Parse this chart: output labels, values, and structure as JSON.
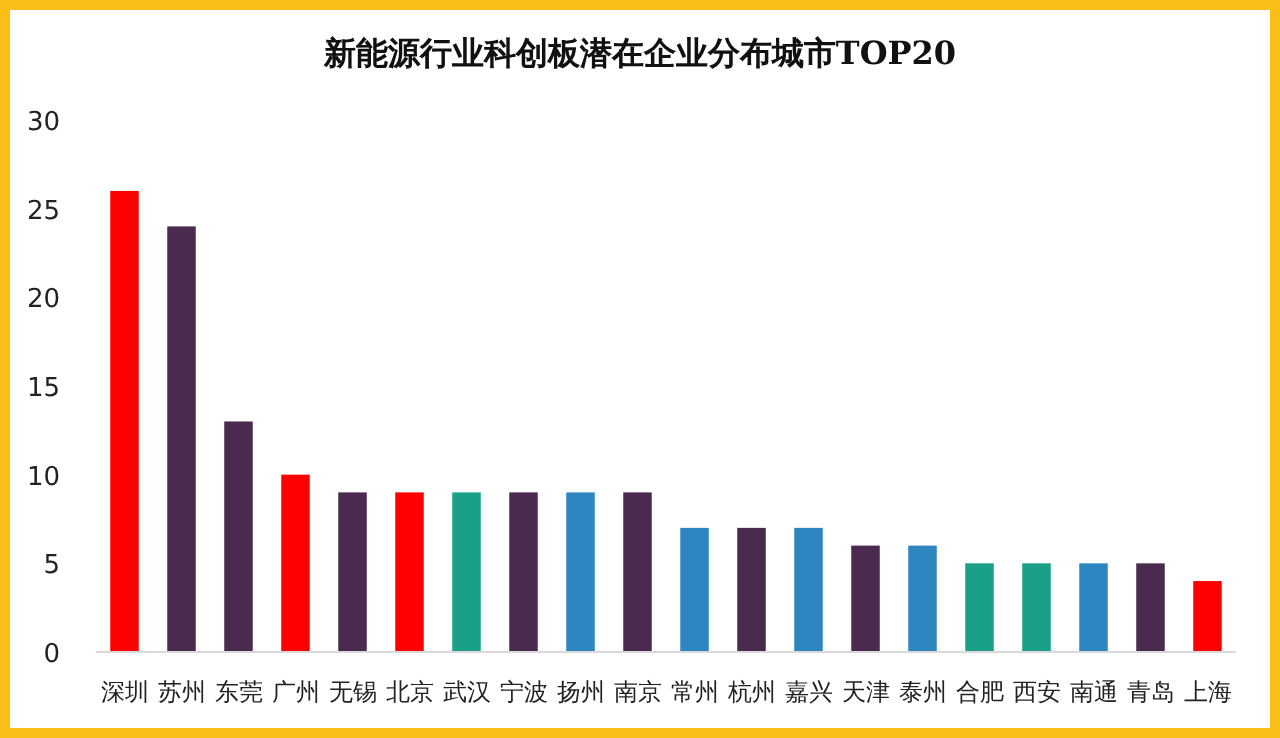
{
  "chart_data": {
    "type": "bar",
    "title": "新能源行业科创板潜在企业分布城市TOP20",
    "categories": [
      "深圳",
      "苏州",
      "东莞",
      "广州",
      "无锡",
      "北京",
      "武汉",
      "宁波",
      "扬州",
      "南京",
      "常州",
      "杭州",
      "嘉兴",
      "天津",
      "泰州",
      "合肥",
      "西安",
      "南通",
      "青岛",
      "上海"
    ],
    "values": [
      26,
      24,
      13,
      10,
      9,
      9,
      9,
      9,
      9,
      9,
      7,
      7,
      7,
      6,
      6,
      5,
      5,
      5,
      5,
      4
    ],
    "colors": [
      "#ff0000",
      "#4a2a4e",
      "#4a2a4e",
      "#ff0000",
      "#4a2a4e",
      "#ff0000",
      "#1aa086",
      "#4a2a4e",
      "#2e86c1",
      "#4a2a4e",
      "#2e86c1",
      "#4a2a4e",
      "#2e86c1",
      "#4a2a4e",
      "#2e86c1",
      "#1aa086",
      "#1aa086",
      "#2e86c1",
      "#4a2a4e",
      "#ff0000"
    ],
    "ylim": [
      0,
      30
    ],
    "yticks": [
      0,
      5,
      10,
      15,
      20,
      25,
      30
    ]
  }
}
